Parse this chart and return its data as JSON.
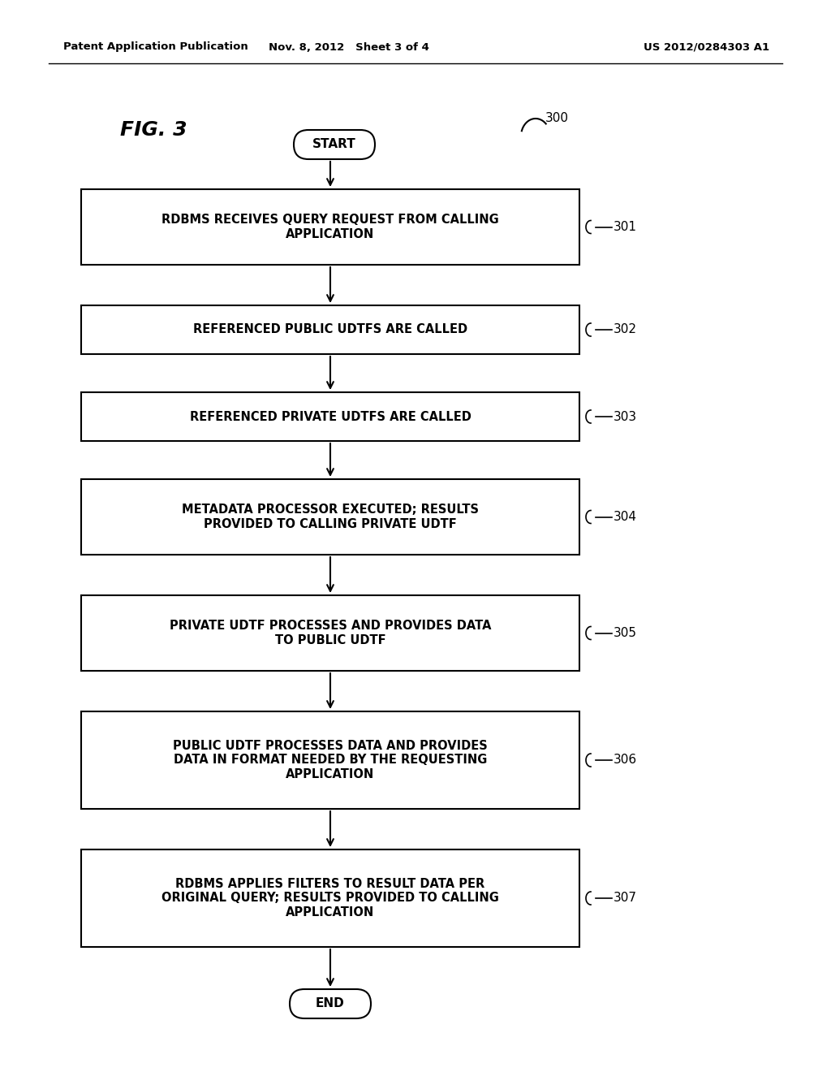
{
  "bg_color": "#ffffff",
  "header_left": "Patent Application Publication",
  "header_mid": "Nov. 8, 2012   Sheet 3 of 4",
  "header_right": "US 2012/0284303 A1",
  "fig_label": "FIG. 3",
  "ref_number": "300",
  "start_label": "START",
  "end_label": "END",
  "boxes": [
    {
      "id": "301",
      "text": "RDBMS RECEIVES QUERY REQUEST FROM CALLING\nAPPLICATION"
    },
    {
      "id": "302",
      "text": "REFERENCED PUBLIC UDTFS ARE CALLED"
    },
    {
      "id": "303",
      "text": "REFERENCED PRIVATE UDTFS ARE CALLED"
    },
    {
      "id": "304",
      "text": "METADATA PROCESSOR EXECUTED; RESULTS\nPROVIDED TO CALLING PRIVATE UDTF"
    },
    {
      "id": "305",
      "text": "PRIVATE UDTF PROCESSES AND PROVIDES DATA\nTO PUBLIC UDTF"
    },
    {
      "id": "306",
      "text": "PUBLIC UDTF PROCESSES DATA AND PROVIDES\nDATA IN FORMAT NEEDED BY THE REQUESTING\nAPPLICATION"
    },
    {
      "id": "307",
      "text": "RDBMS APPLIES FILTERS TO RESULT DATA PER\nORIGINAL QUERY; RESULTS PROVIDED TO CALLING\nAPPLICATION"
    }
  ]
}
